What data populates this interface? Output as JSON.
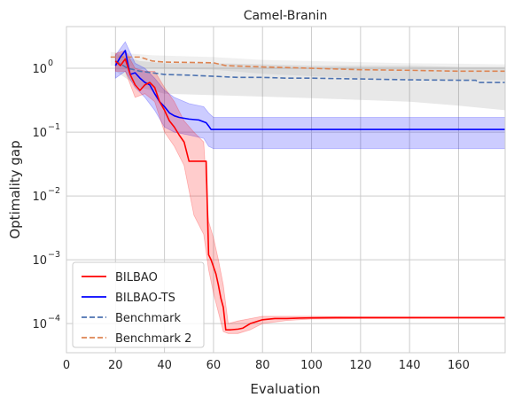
{
  "chart_data": {
    "type": "line",
    "title": "Camel-Branin",
    "xlabel": "Evaluation",
    "ylabel": "Optimality gap",
    "xlim": [
      0,
      179
    ],
    "ylim": [
      3.5e-05,
      4.5
    ],
    "yscale": "log",
    "grid": true,
    "legend_position": "lower-left",
    "x_ticks": [
      0,
      20,
      40,
      60,
      80,
      100,
      120,
      140,
      160
    ],
    "y_ticks": [
      0.0001,
      0.001,
      0.01,
      0.1,
      1
    ],
    "y_tick_labels": [
      {
        "base": "10",
        "exp": "−4"
      },
      {
        "base": "10",
        "exp": "−3"
      },
      {
        "base": "10",
        "exp": "−2"
      },
      {
        "base": "10",
        "exp": "−1"
      },
      {
        "base": "10",
        "exp": "0"
      }
    ],
    "series": [
      {
        "name": "BILBAO",
        "color": "#ff0000",
        "dash": "solid",
        "points": [
          [
            20,
            1.3
          ],
          [
            22,
            1.1
          ],
          [
            24,
            1.4
          ],
          [
            26,
            0.8
          ],
          [
            28,
            0.55
          ],
          [
            30,
            0.45
          ],
          [
            32,
            0.55
          ],
          [
            34,
            0.6
          ],
          [
            36,
            0.5
          ],
          [
            38,
            0.3
          ],
          [
            40,
            0.22
          ],
          [
            42,
            0.15
          ],
          [
            44,
            0.12
          ],
          [
            46,
            0.09
          ],
          [
            48,
            0.07
          ],
          [
            50,
            0.035
          ],
          [
            52,
            0.035
          ],
          [
            55,
            0.035
          ],
          [
            57,
            0.035
          ],
          [
            58,
            0.0012
          ],
          [
            59,
            0.001
          ],
          [
            61,
            0.0006
          ],
          [
            62,
            0.0004
          ],
          [
            63,
            0.00025
          ],
          [
            64,
            0.00018
          ],
          [
            65,
            8e-05
          ],
          [
            67,
            8e-05
          ],
          [
            70,
            8.2e-05
          ],
          [
            72,
            8.5e-05
          ],
          [
            75,
            0.0001
          ],
          [
            80,
            0.000115
          ],
          [
            85,
            0.00012
          ],
          [
            90,
            0.00012
          ],
          [
            95,
            0.000122
          ],
          [
            100,
            0.000123
          ],
          [
            110,
            0.000124
          ],
          [
            120,
            0.000124
          ],
          [
            140,
            0.000124
          ],
          [
            160,
            0.000124
          ],
          [
            179,
            0.000124
          ]
        ],
        "band_lower": [
          [
            20,
            0.9
          ],
          [
            24,
            0.9
          ],
          [
            28,
            0.35
          ],
          [
            32,
            0.4
          ],
          [
            36,
            0.3
          ],
          [
            40,
            0.1
          ],
          [
            44,
            0.06
          ],
          [
            48,
            0.03
          ],
          [
            52,
            0.005
          ],
          [
            56,
            0.0025
          ],
          [
            58,
            0.0007
          ],
          [
            60,
            0.0003
          ],
          [
            62,
            0.00015
          ],
          [
            64,
            7.5e-05
          ],
          [
            66,
            7e-05
          ],
          [
            70,
            7e-05
          ],
          [
            75,
            8e-05
          ],
          [
            80,
            0.0001
          ],
          [
            90,
            0.000112
          ],
          [
            100,
            0.000118
          ],
          [
            120,
            0.00012
          ],
          [
            150,
            0.000121
          ],
          [
            179,
            0.000121
          ]
        ],
        "band_upper": [
          [
            20,
            1.7
          ],
          [
            24,
            1.9
          ],
          [
            28,
            1.0
          ],
          [
            32,
            0.9
          ],
          [
            36,
            0.9
          ],
          [
            40,
            0.5
          ],
          [
            44,
            0.3
          ],
          [
            48,
            0.15
          ],
          [
            52,
            0.1
          ],
          [
            56,
            0.07
          ],
          [
            58,
            0.004
          ],
          [
            60,
            0.0022
          ],
          [
            62,
            0.001
          ],
          [
            64,
            0.0004
          ],
          [
            66,
            0.0001
          ],
          [
            70,
            0.00011
          ],
          [
            75,
            0.00012
          ],
          [
            80,
            0.00013
          ],
          [
            90,
            0.00013
          ],
          [
            100,
            0.00013
          ],
          [
            120,
            0.000128
          ],
          [
            150,
            0.000127
          ],
          [
            179,
            0.000127
          ]
        ]
      },
      {
        "name": "BILBAO-TS",
        "color": "#0000ff",
        "dash": "solid",
        "points": [
          [
            20,
            1.1
          ],
          [
            22,
            1.5
          ],
          [
            24,
            1.9
          ],
          [
            25,
            1.2
          ],
          [
            26,
            0.8
          ],
          [
            28,
            0.85
          ],
          [
            30,
            0.7
          ],
          [
            32,
            0.6
          ],
          [
            34,
            0.55
          ],
          [
            36,
            0.4
          ],
          [
            38,
            0.3
          ],
          [
            40,
            0.25
          ],
          [
            42,
            0.2
          ],
          [
            44,
            0.18
          ],
          [
            46,
            0.17
          ],
          [
            50,
            0.16
          ],
          [
            54,
            0.155
          ],
          [
            57,
            0.14
          ],
          [
            58,
            0.125
          ],
          [
            59,
            0.11
          ],
          [
            60,
            0.11
          ],
          [
            80,
            0.11
          ],
          [
            100,
            0.11
          ],
          [
            120,
            0.11
          ],
          [
            140,
            0.11
          ],
          [
            160,
            0.11
          ],
          [
            179,
            0.11
          ]
        ],
        "band_lower": [
          [
            20,
            0.7
          ],
          [
            24,
            0.9
          ],
          [
            28,
            0.5
          ],
          [
            32,
            0.35
          ],
          [
            36,
            0.22
          ],
          [
            40,
            0.12
          ],
          [
            44,
            0.1
          ],
          [
            50,
            0.09
          ],
          [
            56,
            0.08
          ],
          [
            58,
            0.06
          ],
          [
            60,
            0.055
          ],
          [
            80,
            0.055
          ],
          [
            120,
            0.055
          ],
          [
            179,
            0.055
          ]
        ],
        "band_upper": [
          [
            20,
            1.6
          ],
          [
            24,
            2.6
          ],
          [
            28,
            1.2
          ],
          [
            32,
            1.0
          ],
          [
            36,
            0.7
          ],
          [
            40,
            0.45
          ],
          [
            44,
            0.35
          ],
          [
            50,
            0.28
          ],
          [
            56,
            0.25
          ],
          [
            58,
            0.2
          ],
          [
            60,
            0.17
          ],
          [
            80,
            0.17
          ],
          [
            120,
            0.17
          ],
          [
            179,
            0.17
          ]
        ]
      },
      {
        "name": "Benchmark",
        "color": "#4c72b0",
        "dash": "dashed",
        "points": [
          [
            20,
            1.3
          ],
          [
            25,
            1.0
          ],
          [
            30,
            0.9
          ],
          [
            35,
            0.85
          ],
          [
            40,
            0.8
          ],
          [
            50,
            0.78
          ],
          [
            60,
            0.75
          ],
          [
            70,
            0.72
          ],
          [
            80,
            0.72
          ],
          [
            90,
            0.7
          ],
          [
            100,
            0.7
          ],
          [
            120,
            0.68
          ],
          [
            140,
            0.66
          ],
          [
            160,
            0.65
          ],
          [
            167,
            0.65
          ],
          [
            168,
            0.6
          ],
          [
            179,
            0.6
          ]
        ],
        "band_lower": [
          [
            20,
            0.9
          ],
          [
            30,
            0.5
          ],
          [
            40,
            0.4
          ],
          [
            60,
            0.38
          ],
          [
            80,
            0.36
          ],
          [
            100,
            0.34
          ],
          [
            120,
            0.32
          ],
          [
            140,
            0.3
          ],
          [
            160,
            0.26
          ],
          [
            179,
            0.22
          ]
        ],
        "band_upper": [
          [
            20,
            1.7
          ],
          [
            30,
            1.3
          ],
          [
            40,
            1.2
          ],
          [
            60,
            1.2
          ],
          [
            80,
            1.15
          ],
          [
            100,
            1.1
          ],
          [
            120,
            1.1
          ],
          [
            140,
            1.1
          ],
          [
            160,
            1.05
          ],
          [
            179,
            1.05
          ]
        ]
      },
      {
        "name": "Benchmark 2",
        "color": "#dd8452",
        "dash": "dashed",
        "points": [
          [
            18,
            1.5
          ],
          [
            30,
            1.5
          ],
          [
            35,
            1.3
          ],
          [
            40,
            1.25
          ],
          [
            60,
            1.22
          ],
          [
            65,
            1.1
          ],
          [
            80,
            1.05
          ],
          [
            100,
            1.0
          ],
          [
            120,
            0.95
          ],
          [
            140,
            0.93
          ],
          [
            160,
            0.9
          ],
          [
            179,
            0.9
          ]
        ],
        "band_lower": [
          [
            18,
            1.1
          ],
          [
            35,
            1.0
          ],
          [
            60,
            0.95
          ],
          [
            80,
            0.82
          ],
          [
            100,
            0.75
          ],
          [
            120,
            0.7
          ],
          [
            140,
            0.68
          ],
          [
            160,
            0.66
          ],
          [
            179,
            0.65
          ]
        ],
        "band_upper": [
          [
            18,
            1.8
          ],
          [
            35,
            1.6
          ],
          [
            60,
            1.5
          ],
          [
            80,
            1.35
          ],
          [
            100,
            1.3
          ],
          [
            120,
            1.25
          ],
          [
            140,
            1.2
          ],
          [
            160,
            1.18
          ],
          [
            179,
            1.15
          ]
        ]
      }
    ]
  }
}
